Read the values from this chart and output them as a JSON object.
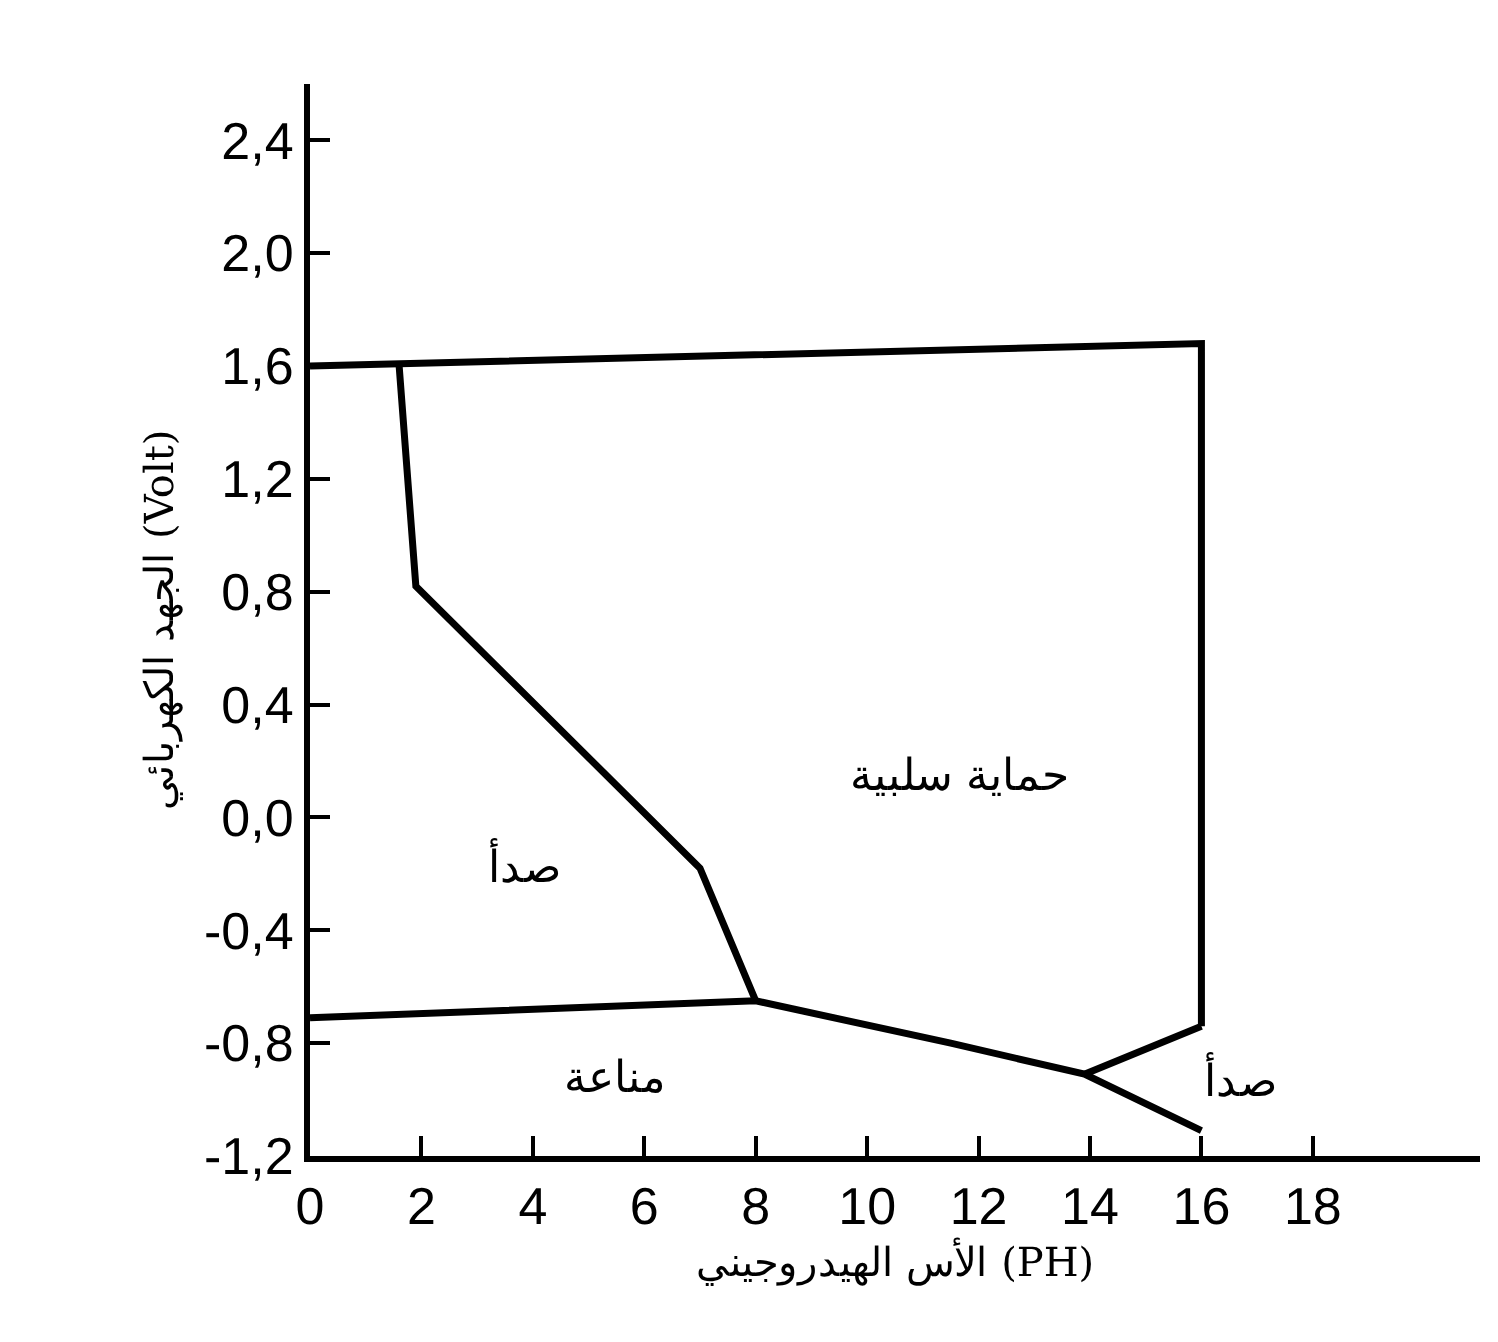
{
  "chart_data": {
    "type": "line",
    "xlabel": "الأس الهيدروجيني (PH)",
    "ylabel": "الجهد الكهربائي (Volt)",
    "xlim": [
      0,
      21
    ],
    "ylim": [
      -1.2,
      2.6
    ],
    "xticks": [
      0,
      2,
      4,
      6,
      8,
      10,
      12,
      14,
      16,
      18
    ],
    "yticks": [
      {
        "value": -1.2,
        "label": "-1,2"
      },
      {
        "value": -0.8,
        "label": "-0,8"
      },
      {
        "value": -0.4,
        "label": "-0,4"
      },
      {
        "value": 0,
        "label": "0,0"
      },
      {
        "value": 0.4,
        "label": "0,4"
      },
      {
        "value": 0.8,
        "label": "0,8"
      },
      {
        "value": 1.2,
        "label": "1,2"
      },
      {
        "value": 1.6,
        "label": "1,6"
      },
      {
        "value": 2.0,
        "label": "2,0"
      },
      {
        "value": 2.4,
        "label": "2,4"
      }
    ],
    "grid": false,
    "marker": "none",
    "line_style": "solid",
    "series": [
      {
        "color": "#000000",
        "x": [
          0,
          16,
          16
        ],
        "values": [
          1.6,
          1.68,
          -0.74
        ]
      },
      {
        "color": "#000000",
        "x": [
          1.6,
          1.9,
          7.0,
          8.0
        ],
        "values": [
          1.6,
          0.82,
          -0.18,
          -0.65
        ]
      },
      {
        "color": "#000000",
        "x": [
          0,
          8.0,
          11.5,
          13.9,
          16
        ],
        "values": [
          -0.71,
          -0.65,
          -0.8,
          -0.91,
          -1.11
        ]
      },
      {
        "color": "#000000",
        "x": [
          13.9,
          16
        ],
        "values": [
          -0.91,
          -0.74
        ]
      }
    ],
    "annotations": [
      "صدأ",
      "حماية سلبية",
      "مناعة",
      "صدأ"
    ]
  }
}
